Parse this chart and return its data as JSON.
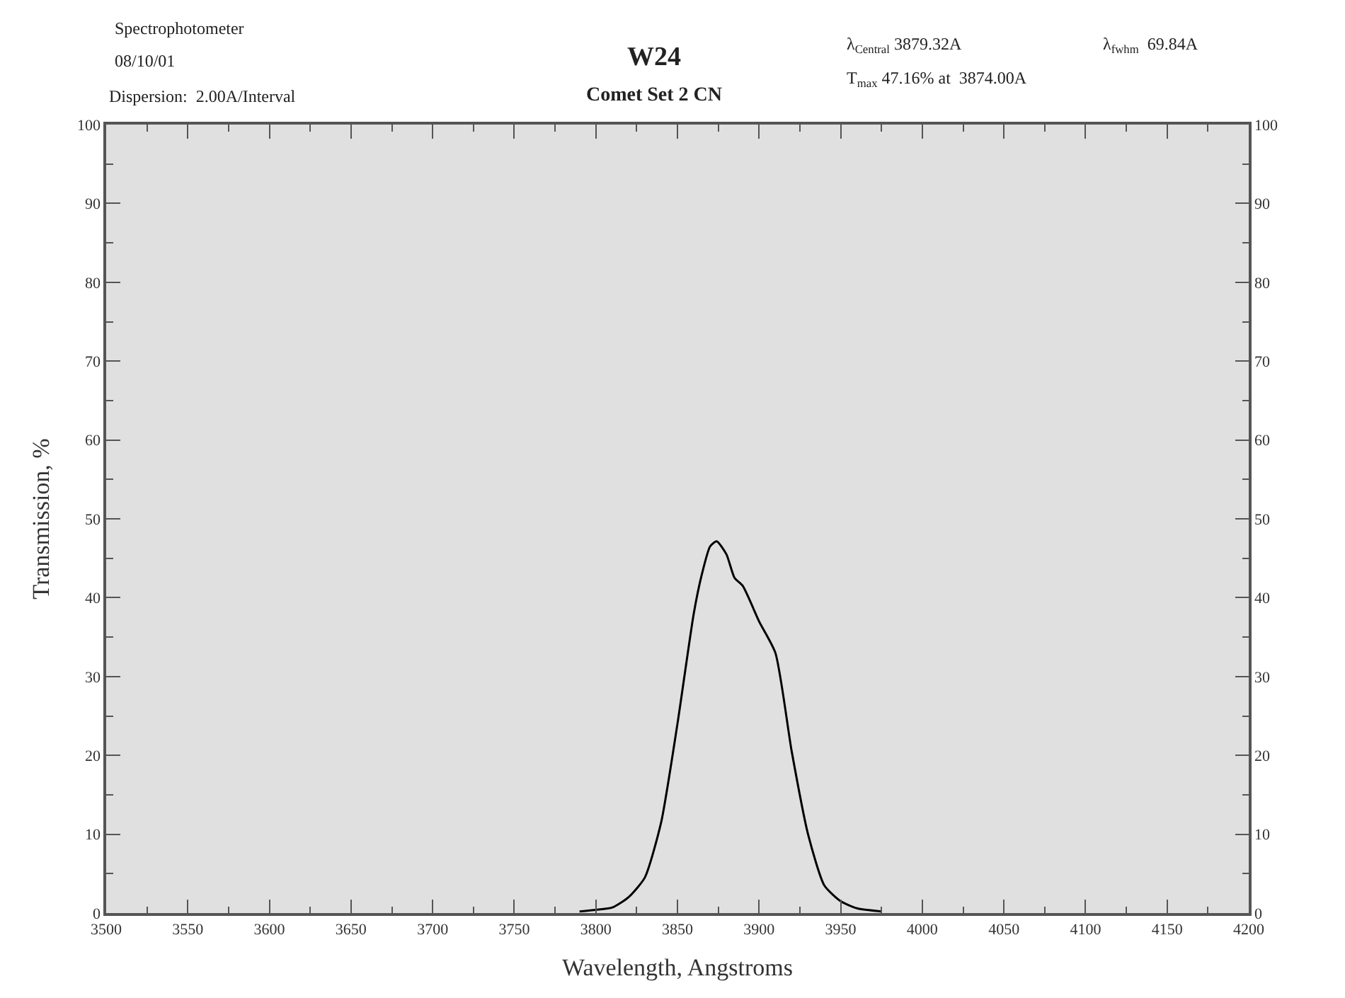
{
  "chart_data": {
    "type": "line",
    "title": "W24",
    "subtitle": "Comet Set 2 CN",
    "xlabel": "Wavelength, Angstroms",
    "ylabel": "Transmission, %",
    "annotations": [
      "Spectrophotometer",
      "08/10/01",
      "Dispersion:  2.00A/Interval",
      "λ$_{Central}$ 3879.32A",
      "λ$_{fwhm}$  69.84A",
      "T$_{max}$ 47.16% at  3874.00A"
    ],
    "x": [
      3790,
      3800,
      3810,
      3820,
      3830,
      3840,
      3850,
      3860,
      3865,
      3870,
      3874,
      3880,
      3885,
      3890,
      3900,
      3910,
      3920,
      3930,
      3940,
      3950,
      3960,
      3975
    ],
    "series": [
      {
        "color": "#000000",
        "values": [
          0.2,
          0.4,
          0.7,
          2,
          4.5,
          11.5,
          24,
          38,
          43,
          46.5,
          47.16,
          45.5,
          42.5,
          41.5,
          37,
          33,
          20.5,
          10,
          3.5,
          1.5,
          0.6,
          0.2
        ]
      }
    ],
    "xlim": [
      3500,
      4200
    ],
    "xticks": [
      3500,
      {
        "value": 3525,
        "label": null
      },
      3550,
      {
        "value": 3575,
        "label": null
      },
      3600,
      {
        "value": 3625,
        "label": null
      },
      3650,
      {
        "value": 3675,
        "label": null
      },
      3700,
      {
        "value": 3725,
        "label": null
      },
      3750,
      {
        "value": 3775,
        "label": null
      },
      3800,
      {
        "value": 3825,
        "label": null
      },
      3850,
      {
        "value": 3875,
        "label": null
      },
      3900,
      {
        "value": 3925,
        "label": null
      },
      3950,
      {
        "value": 3975,
        "label": null
      },
      4000,
      {
        "value": 4025,
        "label": null
      },
      4050,
      {
        "value": 4075,
        "label": null
      },
      4100,
      {
        "value": 4125,
        "label": null
      },
      4150,
      {
        "value": 4175,
        "label": null
      },
      4200
    ],
    "ylim": [
      0,
      100
    ],
    "yticks": [
      0,
      {
        "value": 5,
        "label": null
      },
      10,
      {
        "value": 15,
        "label": null
      },
      20,
      {
        "value": 25,
        "label": null
      },
      30,
      {
        "value": 35,
        "label": null
      },
      40,
      {
        "value": 45,
        "label": null
      },
      50,
      {
        "value": 55,
        "label": null
      },
      60,
      {
        "value": 65,
        "label": null
      },
      70,
      {
        "value": 75,
        "label": null
      },
      80,
      {
        "value": 85,
        "label": null
      },
      90,
      {
        "value": 95,
        "label": null
      },
      100
    ],
    "y2lim": [
      0,
      100
    ],
    "y2ticks": [
      0,
      {
        "value": 5,
        "label": null
      },
      10,
      {
        "value": 15,
        "label": null
      },
      20,
      {
        "value": 25,
        "label": null
      },
      30,
      {
        "value": 35,
        "label": null
      },
      40,
      {
        "value": 45,
        "label": null
      },
      50,
      {
        "value": 55,
        "label": null
      },
      60,
      {
        "value": 65,
        "label": null
      },
      70,
      {
        "value": 75,
        "label": null
      },
      80,
      {
        "value": 85,
        "label": null
      },
      90,
      {
        "value": 95,
        "label": null
      },
      100
    ],
    "grid": false,
    "marker": "none",
    "line_style": "solid"
  }
}
